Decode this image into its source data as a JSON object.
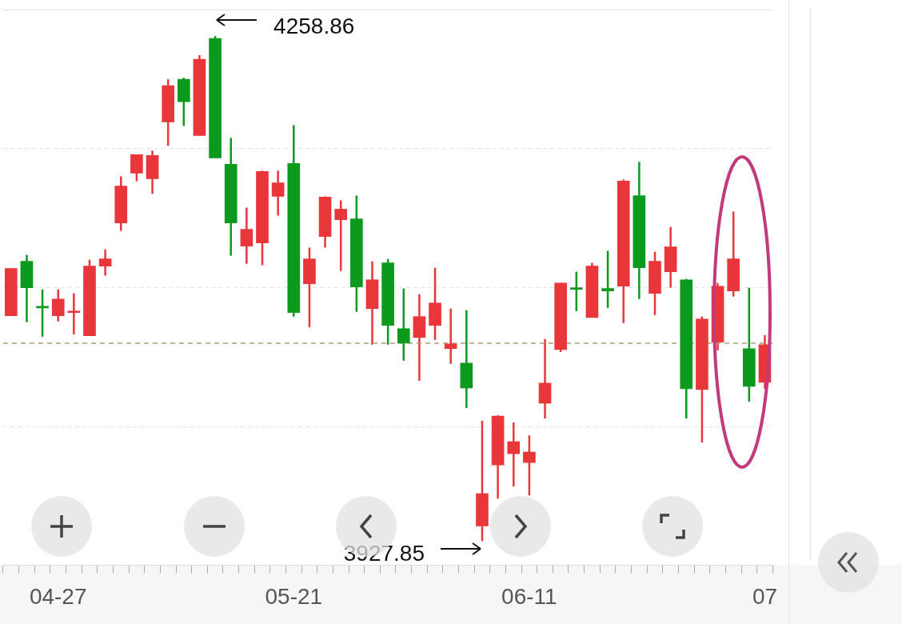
{
  "chart_data": {
    "type": "candlestick",
    "categories": [
      null,
      null,
      null,
      "04-27",
      null,
      null,
      null,
      null,
      null,
      null,
      null,
      null,
      null,
      null,
      null,
      null,
      null,
      null,
      "05-21",
      null,
      null,
      null,
      null,
      null,
      null,
      null,
      null,
      null,
      null,
      null,
      null,
      null,
      null,
      "06-11",
      null,
      null,
      null,
      null,
      null,
      null,
      null,
      null,
      null,
      null,
      null,
      null,
      null,
      null,
      "07"
    ],
    "ohlc": [
      [
        4075.5,
        4106.5,
        4075.5,
        4106.5
      ],
      [
        4111.2,
        4115.4,
        4071.3,
        4093.9
      ],
      [
        4081.8,
        4092.8,
        4061.8,
        4080.7
      ],
      [
        4075.5,
        4092.8,
        4071.8,
        4086.5
      ],
      [
        4077.6,
        4090.2,
        4063.4,
        4078.6
      ],
      [
        4062.4,
        4112.3,
        4062.4,
        4108.1
      ],
      [
        4108.1,
        4119.1,
        4101.8,
        4112.8
      ],
      [
        4136.4,
        4166.9,
        4131.2,
        4160.6
      ],
      [
        4169.0,
        4181.1,
        4163.8,
        4181.1
      ],
      [
        4165.3,
        4183.7,
        4155.4,
        4180.6
      ],
      [
        4202.6,
        4230.5,
        4186.9,
        4226.3
      ],
      [
        4230.5,
        4231.5,
        4200.0,
        4215.8
      ],
      [
        4193.7,
        4246.3,
        4193.7,
        4243.6
      ],
      [
        4257.3,
        4258.86,
        4179.0,
        4179.0
      ],
      [
        4174.8,
        4192.1,
        4114.9,
        4136.4
      ],
      [
        4121.2,
        4146.4,
        4109.6,
        4132.2
      ],
      [
        4123.3,
        4170.6,
        4108.6,
        4170.1
      ],
      [
        4153.8,
        4170.6,
        4141.2,
        4162.7
      ],
      [
        4175.3,
        4200.5,
        4075.0,
        4077.6
      ],
      [
        4096.5,
        4120.2,
        4068.1,
        4112.8
      ],
      [
        4127.5,
        4153.8,
        4120.2,
        4153.3
      ],
      [
        4138.5,
        4151.2,
        4104.9,
        4145.4
      ],
      [
        4139.1,
        4154.3,
        4078.1,
        4094.4
      ],
      [
        4080.2,
        4111.2,
        4056.6,
        4099.1
      ],
      [
        4110.2,
        4112.8,
        4056.6,
        4069.2
      ],
      [
        4067.1,
        4093.4,
        4046.1,
        4057.6
      ],
      [
        4061.3,
        4089.7,
        4032.9,
        4075.0
      ],
      [
        4069.2,
        4107.0,
        4059.7,
        4083.9
      ],
      [
        4054.0,
        4080.2,
        4044.0,
        4057.1
      ],
      [
        4044.5,
        4079.2,
        4015.1,
        4028.2
      ],
      [
        3937.8,
        4006.7,
        3927.85,
        3958.9
      ],
      [
        3977.8,
        4010.3,
        3955.7,
        4009.8
      ],
      [
        3985.1,
        4005.6,
        3963.6,
        3993.0
      ],
      [
        3979.3,
        3997.2,
        3957.8,
        3986.2
      ],
      [
        4018.2,
        4060.3,
        4008.2,
        4031.4
      ],
      [
        4053.4,
        4097.0,
        4051.8,
        4097.0
      ],
      [
        4093.9,
        4104.4,
        4078.6,
        4092.8
      ],
      [
        4074.4,
        4110.2,
        4074.4,
        4108.1
      ],
      [
        4093.4,
        4118.1,
        4080.7,
        4091.8
      ],
      [
        4094.9,
        4164.8,
        4070.8,
        4163.8
      ],
      [
        4154.3,
        4176.4,
        4086.5,
        4107.0
      ],
      [
        4090.2,
        4117.5,
        4076.0,
        4111.2
      ],
      [
        4104.4,
        4133.8,
        4093.9,
        4120.7
      ],
      [
        4099.1,
        4099.7,
        4008.2,
        4027.7
      ],
      [
        4027.2,
        4075.0,
        3992.5,
        4073.4
      ],
      [
        4058.2,
        4097.0,
        4052.9,
        4094.9
      ],
      [
        4091.8,
        4143.8,
        4088.1,
        4112.8
      ],
      [
        4054.0,
        4093.9,
        4019.3,
        4029.3
      ],
      [
        4031.9,
        4062.9,
        4027.7,
        4056.6
      ]
    ],
    "colors": [
      "#e8363a",
      "#0c9a1e",
      "#0c9a1e",
      "#e8363a",
      "#e8363a",
      "#e8363a",
      "#e8363a",
      "#e8363a",
      "#e8363a",
      "#e8363a",
      "#e8363a",
      "#0c9a1e",
      "#e8363a",
      "#0c9a1e",
      "#0c9a1e",
      "#e8363a",
      "#e8363a",
      "#e8363a",
      "#0c9a1e",
      "#e8363a",
      "#e8363a",
      "#e8363a",
      "#0c9a1e",
      "#e8363a",
      "#0c9a1e",
      "#0c9a1e",
      "#e8363a",
      "#e8363a",
      "#e8363a",
      "#0c9a1e",
      "#e8363a",
      "#e8363a",
      "#e8363a",
      "#e8363a",
      "#e8363a",
      "#e8363a",
      "#0c9a1e",
      "#e8363a",
      "#0c9a1e",
      "#e8363a",
      "#0c9a1e",
      "#e8363a",
      "#e8363a",
      "#0c9a1e",
      "#e8363a",
      "#e8363a",
      "#e8363a",
      "#0c9a1e",
      "#e8363a"
    ],
    "ylim": [
      3912.1,
      4276.2
    ],
    "yticks": [
      {
        "value": 4185.3,
        "label": null
      },
      {
        "value": 4093.9,
        "label": null
      },
      {
        "value": 4002.5,
        "label": null
      }
    ],
    "grid": "y",
    "tick_labels": "x",
    "ref_lines": [
      {
        "axis": "y",
        "value": 4057.6,
        "color": "#b0a070",
        "line_style": "dashed"
      }
    ],
    "annotations": [
      "4258.86",
      "3927.85"
    ]
  }
}
